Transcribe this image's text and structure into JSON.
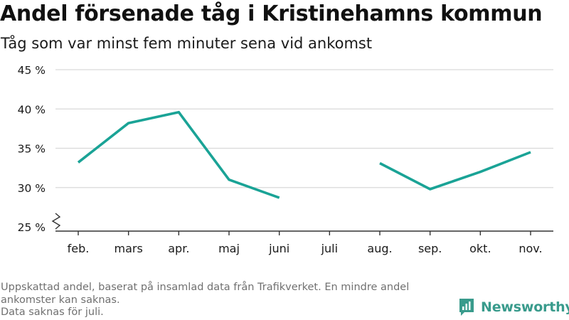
{
  "title": "Andel försenade tåg i Kristinehamns kommun",
  "subtitle": "Tåg som var minst fem minuter sena vid ankomst",
  "footnote": {
    "line1": "Uppskattad andel, baserat på insamlad data från Trafikverket. En mindre andel ankomster kan saknas.",
    "line2": "Data saknas för juli."
  },
  "brand": {
    "name": "Newsworthy",
    "color": "#399b8c"
  },
  "colors": {
    "line": "#1aa396",
    "grid": "#d9d9d9",
    "axis": "#333333",
    "text": "#1a1a1a"
  },
  "chart_data": {
    "type": "line",
    "categories": [
      "feb.",
      "mars",
      "apr.",
      "maj",
      "juni",
      "juli",
      "aug.",
      "sep.",
      "okt.",
      "nov."
    ],
    "series": [
      {
        "values": [
          33.2,
          38.2,
          39.6,
          31.0,
          28.7,
          null,
          33.1,
          29.8,
          32.0,
          34.5
        ]
      }
    ],
    "y_ticks": [
      25,
      30,
      35,
      40,
      45
    ],
    "y_tick_labels": [
      "25 %",
      "30 %",
      "35 %",
      "40 %",
      "45 %"
    ],
    "ylim": [
      25,
      45
    ],
    "y_axis_break": true,
    "grid": "horizontal",
    "xlabel": "",
    "ylabel": ""
  }
}
